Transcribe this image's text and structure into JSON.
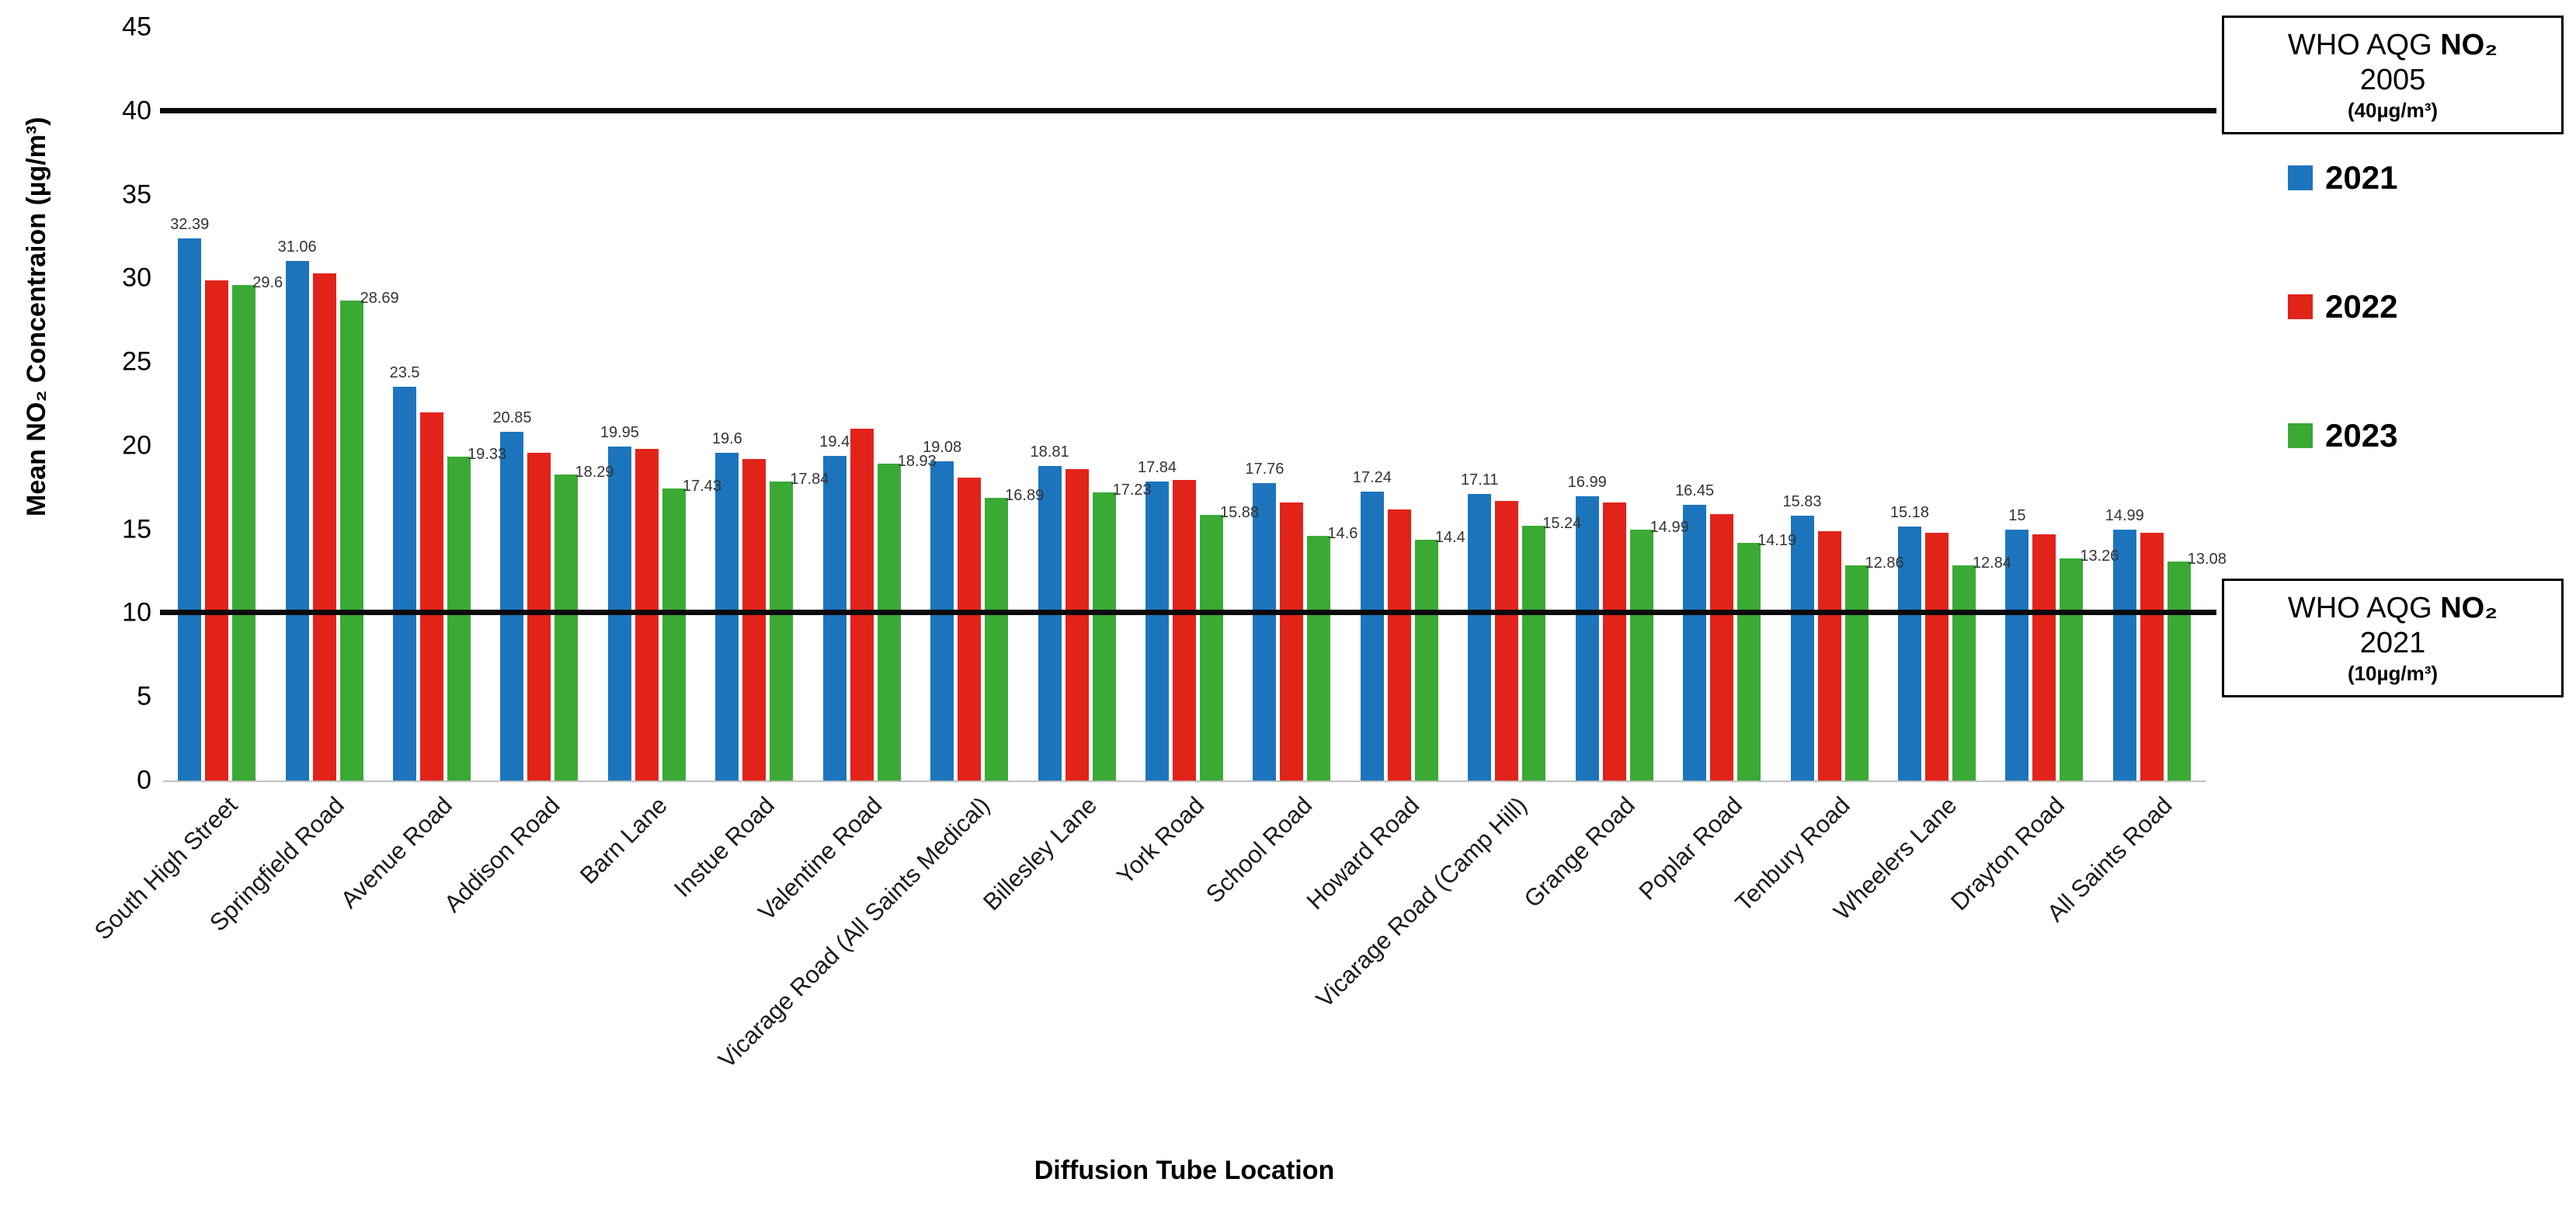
{
  "chart_data": {
    "type": "bar",
    "title": "",
    "xlabel": "Diffusion Tube Location",
    "ylabel": "Mean NO₂ Concentraion (µg/m³)",
    "ylim": [
      0,
      45
    ],
    "yticks": [
      0,
      5,
      10,
      15,
      20,
      25,
      30,
      35,
      40,
      45
    ],
    "grid": false,
    "legend_position": "right",
    "categories": [
      "South High Street",
      "Springfield Road",
      "Avenue Road",
      "Addison Road",
      "Barn Lane",
      "Instue Road",
      "Valentine Road",
      "Vicarage Road (All Saints Medical)",
      "Billesley Lane",
      "York Road",
      "School Road",
      "Howard Road",
      "Vicarage Road (Camp Hill)",
      "Grange Road",
      "Poplar Road",
      "Tenbury Road",
      "Wheelers Lane",
      "Drayton Road",
      "All Saints Road"
    ],
    "series": [
      {
        "name": "2021",
        "color": "#1C75BC",
        "values": [
          32.39,
          31.06,
          23.5,
          20.85,
          19.95,
          19.6,
          19.4,
          19.08,
          18.81,
          17.84,
          17.76,
          17.24,
          17.11,
          16.99,
          16.45,
          15.83,
          15.18,
          15,
          14.99
        ],
        "labels": [
          "32.39",
          "31.06",
          "23.5",
          "20.85",
          "19.95",
          "19.6",
          "19.4",
          "19.08",
          "18.81",
          "17.84",
          "17.76",
          "17.24",
          "17.11",
          "16.99",
          "16.45",
          "15.83",
          "15.18",
          "15",
          "14.99"
        ]
      },
      {
        "name": "2022",
        "color": "#E2231A",
        "values": [
          29.9,
          30.3,
          22.0,
          19.6,
          19.8,
          19.2,
          21.0,
          18.1,
          18.6,
          17.95,
          16.6,
          16.2,
          16.7,
          16.6,
          15.9,
          14.9,
          14.8,
          14.7,
          14.8
        ],
        "labels": null
      },
      {
        "name": "2023",
        "color": "#3AAA35",
        "values": [
          29.6,
          28.69,
          19.33,
          18.29,
          17.43,
          17.84,
          18.93,
          16.89,
          17.23,
          15.88,
          14.6,
          14.4,
          15.24,
          14.99,
          14.19,
          12.86,
          12.84,
          13.26,
          13.08
        ],
        "labels": [
          "29.6",
          "28.69",
          "19.33",
          "18.29",
          "17.43",
          "17.84",
          "18.93",
          "16.89",
          "17.23",
          "15.88",
          "14.6",
          "14.4",
          "15.24",
          "14.99",
          "14.19",
          "12.86",
          "12.84",
          "13.26",
          "13.08"
        ]
      }
    ],
    "reference_lines": [
      {
        "value": 40,
        "label": "WHO AQG NO₂ 2005 (40µg/m³)"
      },
      {
        "value": 10,
        "label": "WHO AQG NO₂ 2021 (10µg/m³)"
      }
    ]
  },
  "legend": {
    "items": [
      {
        "label": "2021",
        "color": "#1C75BC"
      },
      {
        "label": "2022",
        "color": "#E2231A"
      },
      {
        "label": "2023",
        "color": "#3AAA35"
      }
    ]
  },
  "annotations": {
    "who_2005": {
      "prefix": "WHO AQG ",
      "bold": "NO₂",
      "line2": "2005",
      "line3": "(40µg/m³)"
    },
    "who_2021": {
      "prefix": "WHO AQG ",
      "bold": "NO₂",
      "line2": "2021",
      "line3": "(10µg/m³)"
    }
  }
}
